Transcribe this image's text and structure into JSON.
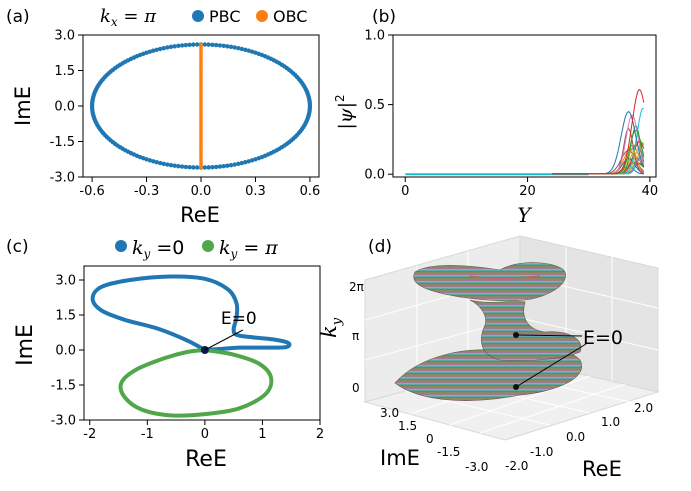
{
  "panels": {
    "a": {
      "label": "(a)",
      "condition": "k_x = π"
    },
    "b": {
      "label": "(b)"
    },
    "c": {
      "label": "(c)"
    },
    "d": {
      "label": "(d)"
    }
  },
  "chart_data": [
    {
      "id": "a",
      "type": "scatter",
      "title": "",
      "xlabel": "ReE",
      "ylabel": "ImE",
      "xlim": [
        -0.65,
        0.65
      ],
      "ylim": [
        -3.0,
        3.0
      ],
      "xticks": [
        "-0.6",
        "-0.3",
        "0.0",
        "0.3",
        "0.6"
      ],
      "xtick_values": [
        -0.6,
        -0.3,
        0.0,
        0.3,
        0.6
      ],
      "yticks": [
        "-3.0",
        "-1.5",
        "0.0",
        "1.5",
        "3.0"
      ],
      "ytick_values": [
        -3.0,
        -1.5,
        0.0,
        1.5,
        3.0
      ],
      "legend_position": "top",
      "series": [
        {
          "name": "PBC",
          "color": "#1f77b4",
          "shape": "ellipse",
          "center": [
            0,
            0
          ],
          "semi_axes": [
            0.6,
            2.6
          ]
        },
        {
          "name": "OBC",
          "color": "#ff7f0e",
          "shape": "segment",
          "x": 0.0,
          "y_range": [
            -2.6,
            2.6
          ]
        }
      ]
    },
    {
      "id": "b",
      "type": "line",
      "title": "",
      "xlabel": "Y",
      "ylabel": "|ψ|²",
      "xlim": [
        -2,
        41
      ],
      "ylim": [
        -0.02,
        1.0
      ],
      "xticks": [
        "0",
        "20",
        "40"
      ],
      "xtick_values": [
        0,
        20,
        40
      ],
      "yticks": [
        "0.0",
        "0.5",
        "1.0"
      ],
      "ytick_values": [
        0.0,
        0.5,
        1.0
      ],
      "description_points": [
        [
          0,
          0.0
        ],
        [
          30,
          0.0
        ],
        [
          35,
          0.05
        ],
        [
          38,
          0.4
        ],
        [
          39,
          0.6
        ]
      ]
    },
    {
      "id": "c",
      "type": "line",
      "title": "",
      "xlabel": "ReE",
      "ylabel": "ImE",
      "xlim": [
        -2.1,
        2.0
      ],
      "ylim": [
        -3.0,
        3.6
      ],
      "xticks": [
        "-2",
        "-1",
        "0",
        "1",
        "2"
      ],
      "xtick_values": [
        -2,
        -1,
        0,
        1,
        2
      ],
      "yticks": [
        "-3.0",
        "-1.5",
        "0.0",
        "1.5",
        "3.0"
      ],
      "ytick_values": [
        -3.0,
        -1.5,
        0.0,
        1.5,
        3.0
      ],
      "legend_position": "top",
      "annotation": {
        "text": "E=0",
        "point": [
          0,
          0
        ]
      },
      "series": [
        {
          "name": "k_y = 0",
          "color": "#1f77b4",
          "points": [
            [
              0.0,
              0.0
            ],
            [
              -0.3,
              0.4
            ],
            [
              -0.8,
              0.9
            ],
            [
              -1.4,
              1.3
            ],
            [
              -1.8,
              1.7
            ],
            [
              -1.95,
              2.2
            ],
            [
              -1.8,
              2.7
            ],
            [
              -1.3,
              3.0
            ],
            [
              -0.6,
              3.15
            ],
            [
              0.0,
              3.05
            ],
            [
              0.4,
              2.6
            ],
            [
              0.55,
              2.0
            ],
            [
              0.55,
              1.4
            ],
            [
              0.5,
              0.9
            ],
            [
              0.55,
              0.65
            ],
            [
              0.8,
              0.55
            ],
            [
              1.2,
              0.45
            ],
            [
              1.45,
              0.3
            ],
            [
              1.4,
              0.12
            ],
            [
              1.0,
              0.1
            ],
            [
              0.6,
              0.1
            ],
            [
              0.3,
              0.05
            ],
            [
              0.0,
              0.0
            ]
          ]
        },
        {
          "name": "k_y = π",
          "color": "#4fa74a",
          "points": [
            [
              0.0,
              0.0
            ],
            [
              0.5,
              -0.2
            ],
            [
              0.95,
              -0.6
            ],
            [
              1.15,
              -1.2
            ],
            [
              1.05,
              -1.9
            ],
            [
              0.6,
              -2.5
            ],
            [
              0.0,
              -2.75
            ],
            [
              -0.6,
              -2.8
            ],
            [
              -1.1,
              -2.55
            ],
            [
              -1.4,
              -2.0
            ],
            [
              -1.45,
              -1.4
            ],
            [
              -1.2,
              -0.85
            ],
            [
              -0.7,
              -0.35
            ],
            [
              -0.3,
              -0.08
            ],
            [
              0.0,
              0.0
            ]
          ]
        }
      ]
    },
    {
      "id": "d",
      "type": "surface3d",
      "title": "",
      "xlabel": "ReE",
      "ylabel": "ImE",
      "zlabel": "k_y",
      "xticks": [
        "-2.0",
        "-1.0",
        "0.0",
        "1.0",
        "2.0"
      ],
      "yticks": [
        "3.0",
        "1.5",
        "0",
        "-1.5",
        "-3.0"
      ],
      "zticks": [
        "0",
        "π",
        "2π"
      ],
      "annotation": {
        "text": "E=0"
      }
    }
  ],
  "labels": {
    "pbc": "PBC",
    "obc": "OBC",
    "eq0": "E=0",
    "a_cond": "k",
    "a_sub": "x",
    "a_eq": " = π",
    "c_ky": "k",
    "c_sub": "y",
    "c_l1_eq": " =0",
    "c_l2_eq": " = π",
    "b_ylabel_abs": "|ψ|",
    "b_ylabel_pow": "2",
    "b_xlabel": "Y",
    "d_zlabel": "k",
    "d_zsub": "y"
  },
  "colors": {
    "blue": "#1f77b4",
    "orange": "#ff7f0e",
    "green": "#4fa74a"
  }
}
